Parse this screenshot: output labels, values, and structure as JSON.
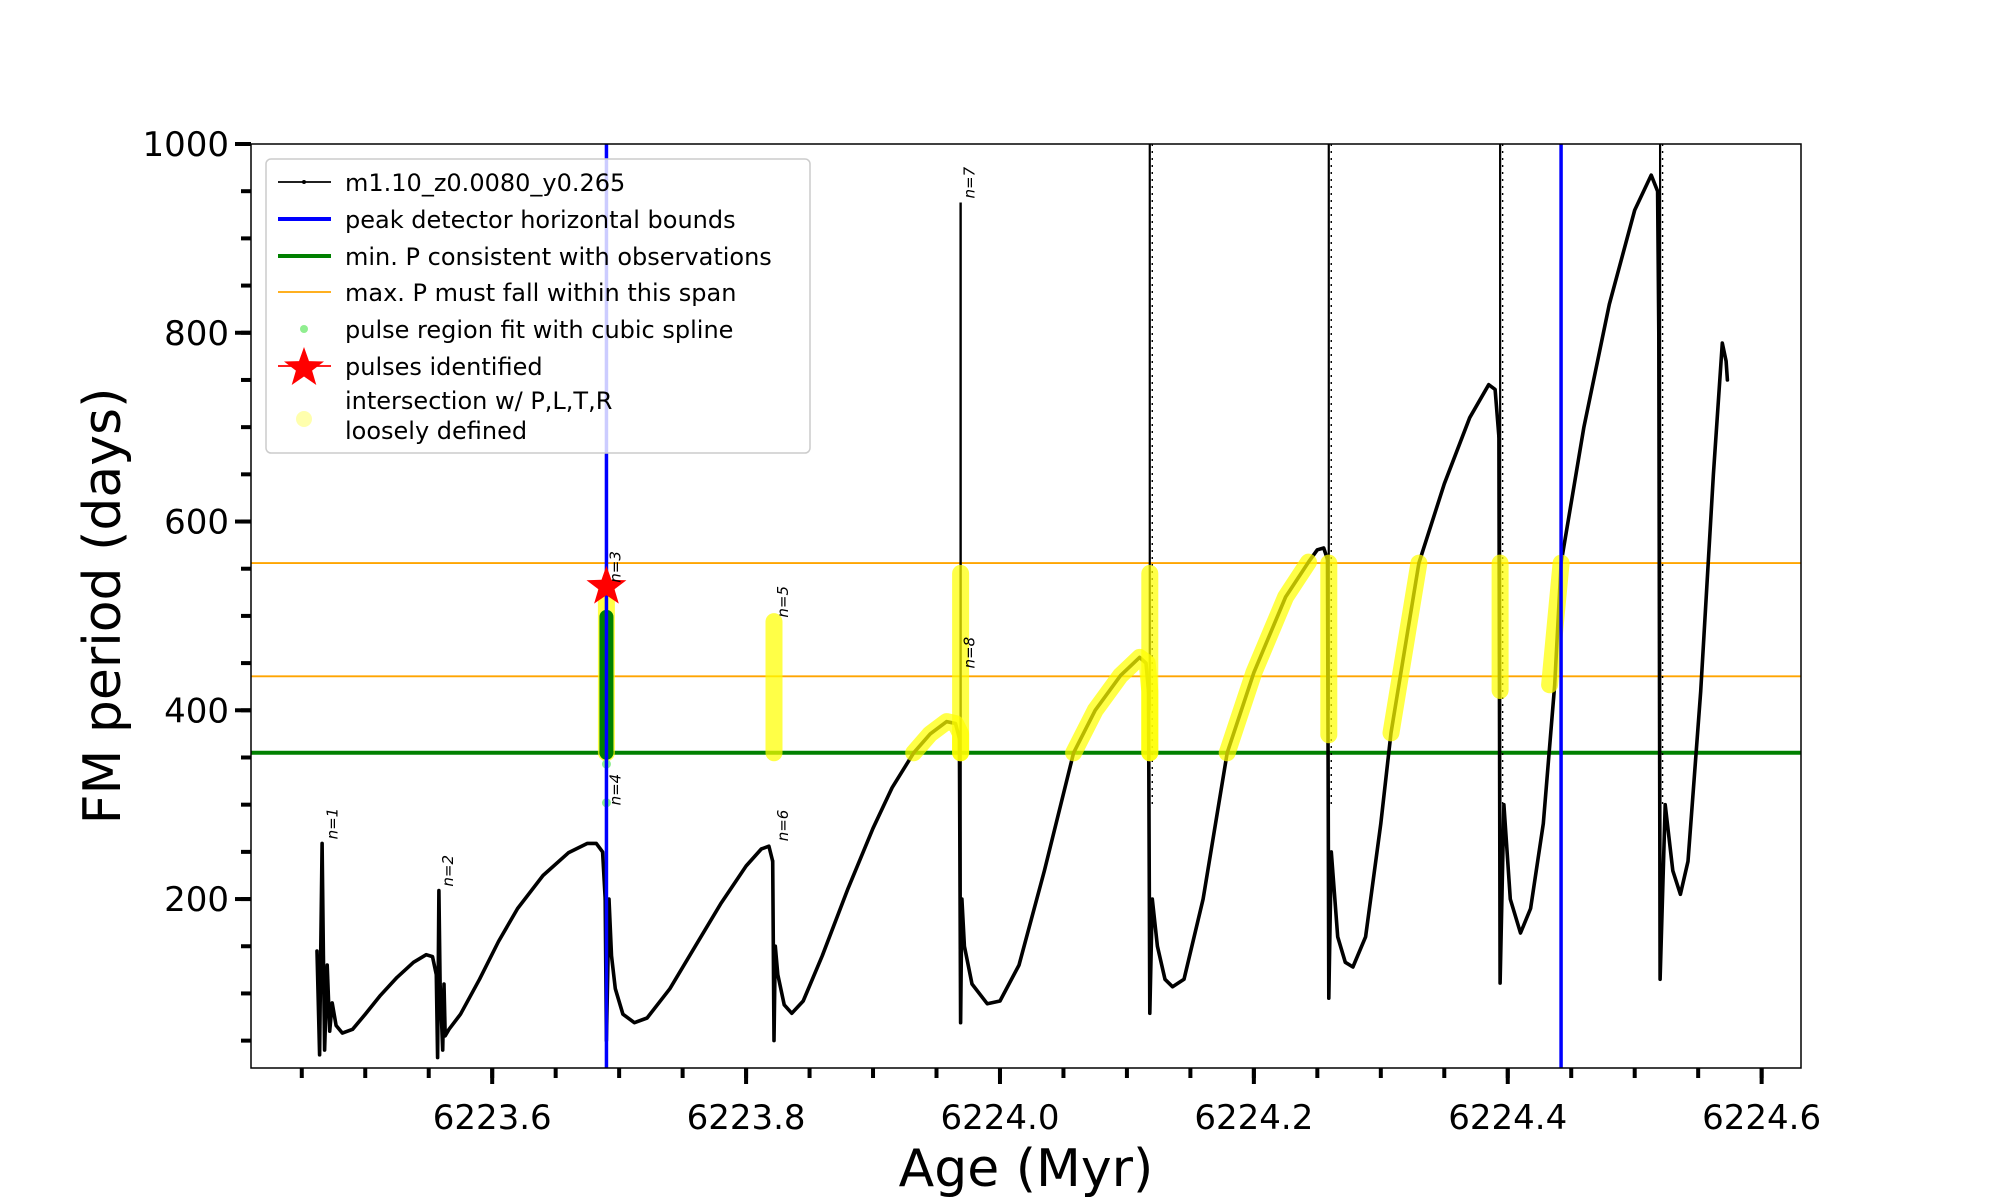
{
  "chart_data": {
    "type": "line",
    "title": "",
    "xlabel": "Age (Myr)",
    "ylabel": "FM period (days)",
    "xlim": [
      6223.41,
      6224.631
    ],
    "ylim": [
      21,
      1000
    ],
    "grid": false,
    "legend_position": "top-left",
    "x_ticks": [
      {
        "value": 6223.6,
        "label": "6223.6"
      },
      {
        "value": 6223.8,
        "label": "6223.8"
      },
      {
        "value": 6224.0,
        "label": "6224.0"
      },
      {
        "value": 6224.2,
        "label": "6224.2"
      },
      {
        "value": 6224.4,
        "label": "6224.4"
      },
      {
        "value": 6224.6,
        "label": "6224.6"
      }
    ],
    "x_minor_step": 0.05,
    "y_ticks": [
      {
        "value": 200,
        "label": "200"
      },
      {
        "value": 400,
        "label": "400"
      },
      {
        "value": 600,
        "label": "600"
      },
      {
        "value": 800,
        "label": "800"
      },
      {
        "value": 1000,
        "label": "1000"
      }
    ],
    "y_minor_step": 50,
    "legend": [
      {
        "key": "track",
        "label": "m1.10_z0.0080_y0.265",
        "color": "#000000",
        "kind": "line-dot"
      },
      {
        "key": "bounds",
        "label": "peak detector horizontal bounds",
        "color": "#0000ff",
        "kind": "thick-line"
      },
      {
        "key": "minP",
        "label": "min. P consistent with observations",
        "color": "#008000",
        "kind": "thick-line"
      },
      {
        "key": "maxP",
        "label": "max. P must fall within this span",
        "color": "#ffa500",
        "kind": "thin-line"
      },
      {
        "key": "spline",
        "label": "pulse region fit with cubic spline",
        "color": "#90ee90",
        "kind": "dot"
      },
      {
        "key": "pulses",
        "label": "pulses identified",
        "color": "#ff0000",
        "kind": "star"
      },
      {
        "key": "intersection",
        "label": "intersection w/ P,L,T,R",
        "label2": "loosely defined",
        "color": "#ffff99",
        "kind": "circle"
      }
    ],
    "reference_lines": {
      "vertical_bounds": [
        6223.69,
        6224.442
      ],
      "min_P": 355,
      "max_P_span": [
        436,
        556
      ]
    },
    "series": [
      {
        "name": "m1.10_z0.0080_y0.265",
        "color": "#000000",
        "segments": [
          [
            [
              6223.462,
              145
            ],
            [
              6223.464,
              35
            ],
            [
              6223.465,
              150
            ],
            [
              6223.466,
              259
            ],
            [
              6223.467,
              140
            ],
            [
              6223.468,
              40
            ],
            [
              6223.47,
              130
            ],
            [
              6223.472,
              60
            ],
            [
              6223.474,
              90
            ],
            [
              6223.477,
              66
            ],
            [
              6223.482,
              58
            ],
            [
              6223.49,
              62
            ],
            [
              6223.5,
              78
            ],
            [
              6223.512,
              98
            ],
            [
              6223.525,
              117
            ],
            [
              6223.538,
              133
            ],
            [
              6223.548,
              141
            ],
            [
              6223.553,
              139
            ],
            [
              6223.556,
              120
            ]
          ],
          [
            [
              6223.556,
              120
            ],
            [
              6223.557,
              32
            ],
            [
              6223.558,
              209
            ],
            [
              6223.559,
              110
            ],
            [
              6223.561,
              40
            ],
            [
              6223.562,
              110
            ],
            [
              6223.563,
              55
            ],
            [
              6223.566,
              62
            ],
            [
              6223.575,
              78
            ],
            [
              6223.59,
              115
            ],
            [
              6223.605,
              155
            ],
            [
              6223.62,
              190
            ],
            [
              6223.64,
              225
            ],
            [
              6223.66,
              249
            ],
            [
              6223.675,
              259
            ],
            [
              6223.682,
              259
            ],
            [
              6223.687,
              250
            ],
            [
              6223.689,
              200
            ]
          ],
          [
            [
              6223.689,
              200
            ],
            [
              6223.69,
              50
            ],
            [
              6223.691,
              120
            ],
            [
              6223.692,
              200
            ],
            [
              6223.694,
              140
            ],
            [
              6223.697,
              105
            ],
            [
              6223.703,
              78
            ],
            [
              6223.712,
              69
            ],
            [
              6223.722,
              74
            ],
            [
              6223.74,
              105
            ],
            [
              6223.76,
              150
            ],
            [
              6223.78,
              195
            ],
            [
              6223.8,
              235
            ],
            [
              6223.812,
              253
            ],
            [
              6223.818,
              256
            ],
            [
              6223.821,
              240
            ]
          ],
          [
            [
              6223.821,
              240
            ],
            [
              6223.822,
              50
            ],
            [
              6223.823,
              150
            ],
            [
              6223.825,
              120
            ],
            [
              6223.83,
              88
            ],
            [
              6223.836,
              79
            ],
            [
              6223.845,
              92
            ],
            [
              6223.86,
              140
            ],
            [
              6223.88,
              210
            ],
            [
              6223.9,
              275
            ],
            [
              6223.915,
              318
            ],
            [
              6223.932,
              355
            ],
            [
              6223.945,
              375
            ],
            [
              6223.958,
              388
            ],
            [
              6223.965,
              386
            ],
            [
              6223.968,
              370
            ]
          ],
          [
            [
              6223.968,
              370
            ],
            [
              6223.969,
              69
            ],
            [
              6223.97,
              200
            ],
            [
              6223.972,
              150
            ],
            [
              6223.978,
              110
            ],
            [
              6223.99,
              89
            ],
            [
              6224.0,
              92
            ],
            [
              6224.015,
              130
            ],
            [
              6224.035,
              230
            ],
            [
              6224.058,
              355
            ],
            [
              6224.075,
              400
            ],
            [
              6224.095,
              437
            ],
            [
              6224.11,
              456
            ],
            [
              6224.115,
              450
            ],
            [
              6224.117,
              420
            ]
          ],
          [
            [
              6224.117,
              420
            ],
            [
              6224.118,
              79
            ],
            [
              6224.12,
              200
            ],
            [
              6224.124,
              150
            ],
            [
              6224.13,
              115
            ],
            [
              6224.136,
              107
            ],
            [
              6224.145,
              115
            ],
            [
              6224.16,
              200
            ],
            [
              6224.179,
              355
            ],
            [
              6224.2,
              440
            ],
            [
              6224.225,
              520
            ],
            [
              6224.243,
              557
            ],
            [
              6224.25,
              570
            ],
            [
              6224.255,
              572
            ],
            [
              6224.258,
              560
            ]
          ],
          [
            [
              6224.258,
              560
            ],
            [
              6224.259,
              95
            ],
            [
              6224.261,
              250
            ],
            [
              6224.266,
              160
            ],
            [
              6224.272,
              133
            ],
            [
              6224.278,
              128
            ],
            [
              6224.288,
              160
            ],
            [
              6224.3,
              280
            ],
            [
              6224.308,
              376
            ],
            [
              6224.33,
              556
            ],
            [
              6224.35,
              640
            ],
            [
              6224.37,
              710
            ],
            [
              6224.385,
              745
            ],
            [
              6224.39,
              740
            ],
            [
              6224.393,
              690
            ]
          ],
          [
            [
              6224.393,
              690
            ],
            [
              6224.394,
              111
            ],
            [
              6224.397,
              300
            ],
            [
              6224.402,
              200
            ],
            [
              6224.41,
              164
            ],
            [
              6224.418,
              190
            ],
            [
              6224.428,
              280
            ],
            [
              6224.437,
              427
            ],
            [
              6224.442,
              556
            ],
            [
              6224.46,
              700
            ],
            [
              6224.48,
              830
            ],
            [
              6224.5,
              930
            ],
            [
              6224.513,
              967
            ],
            [
              6224.518,
              950
            ],
            [
              6224.519,
              800
            ]
          ],
          [
            [
              6224.519,
              800
            ],
            [
              6224.52,
              115
            ],
            [
              6224.524,
              300
            ],
            [
              6224.53,
              230
            ],
            [
              6224.536,
              205
            ],
            [
              6224.542,
              240
            ],
            [
              6224.552,
              420
            ],
            [
              6224.562,
              650
            ],
            [
              6224.569,
              789
            ],
            [
              6224.572,
              770
            ],
            [
              6224.573,
              750
            ]
          ]
        ],
        "spikes_to_top": [
          6224.118,
          6224.259,
          6224.394,
          6224.52
        ],
        "spike_n7": {
          "age": 6223.969,
          "bottom": 69,
          "top": 938
        }
      }
    ],
    "spline_fit": {
      "color": "#008000",
      "column": {
        "age": 6223.69,
        "from": 355,
        "to": 499
      },
      "light_dots": [
        [
          6223.69,
          343
        ],
        [
          6223.69,
          302
        ]
      ]
    },
    "intersection_segments": [
      [
        [
          6223.69,
          355
        ],
        [
          6223.69,
          531
        ]
      ],
      [
        [
          6223.822,
          355
        ],
        [
          6223.822,
          494
        ]
      ],
      [
        [
          6223.932,
          355
        ],
        [
          6223.945,
          375
        ],
        [
          6223.958,
          388
        ],
        [
          6223.965,
          386
        ],
        [
          6223.969,
          375
        ],
        [
          6223.969,
          355
        ]
      ],
      [
        [
          6223.969,
          355
        ],
        [
          6223.969,
          545
        ]
      ],
      [
        [
          6224.058,
          355
        ],
        [
          6224.075,
          400
        ],
        [
          6224.095,
          437
        ],
        [
          6224.11,
          456
        ],
        [
          6224.116,
          450
        ],
        [
          6224.118,
          420
        ],
        [
          6224.118,
          355
        ]
      ],
      [
        [
          6224.118,
          355
        ],
        [
          6224.118,
          545
        ]
      ],
      [
        [
          6224.179,
          355
        ],
        [
          6224.2,
          440
        ],
        [
          6224.225,
          520
        ],
        [
          6224.243,
          557
        ]
      ],
      [
        [
          6224.259,
          374
        ],
        [
          6224.259,
          556
        ]
      ],
      [
        [
          6224.308,
          376
        ],
        [
          6224.33,
          556
        ]
      ],
      [
        [
          6224.394,
          421
        ],
        [
          6224.394,
          556
        ]
      ],
      [
        [
          6224.433,
          427
        ],
        [
          6224.442,
          556
        ]
      ]
    ],
    "pulses_identified": [
      {
        "age": 6223.69,
        "period": 531
      }
    ],
    "annotations": [
      {
        "text": "n=1",
        "age": 6223.467,
        "period": 259
      },
      {
        "text": "n=2",
        "age": 6223.558,
        "period": 209
      },
      {
        "text": "n=3",
        "age": 6223.69,
        "period": 531
      },
      {
        "text": "n=4",
        "age": 6223.69,
        "period": 295
      },
      {
        "text": "n=5",
        "age": 6223.822,
        "period": 494
      },
      {
        "text": "n=6",
        "age": 6223.822,
        "period": 257
      },
      {
        "text": "n=7",
        "age": 6223.969,
        "period": 938
      },
      {
        "text": "n=8",
        "age": 6223.969,
        "period": 440
      }
    ]
  }
}
